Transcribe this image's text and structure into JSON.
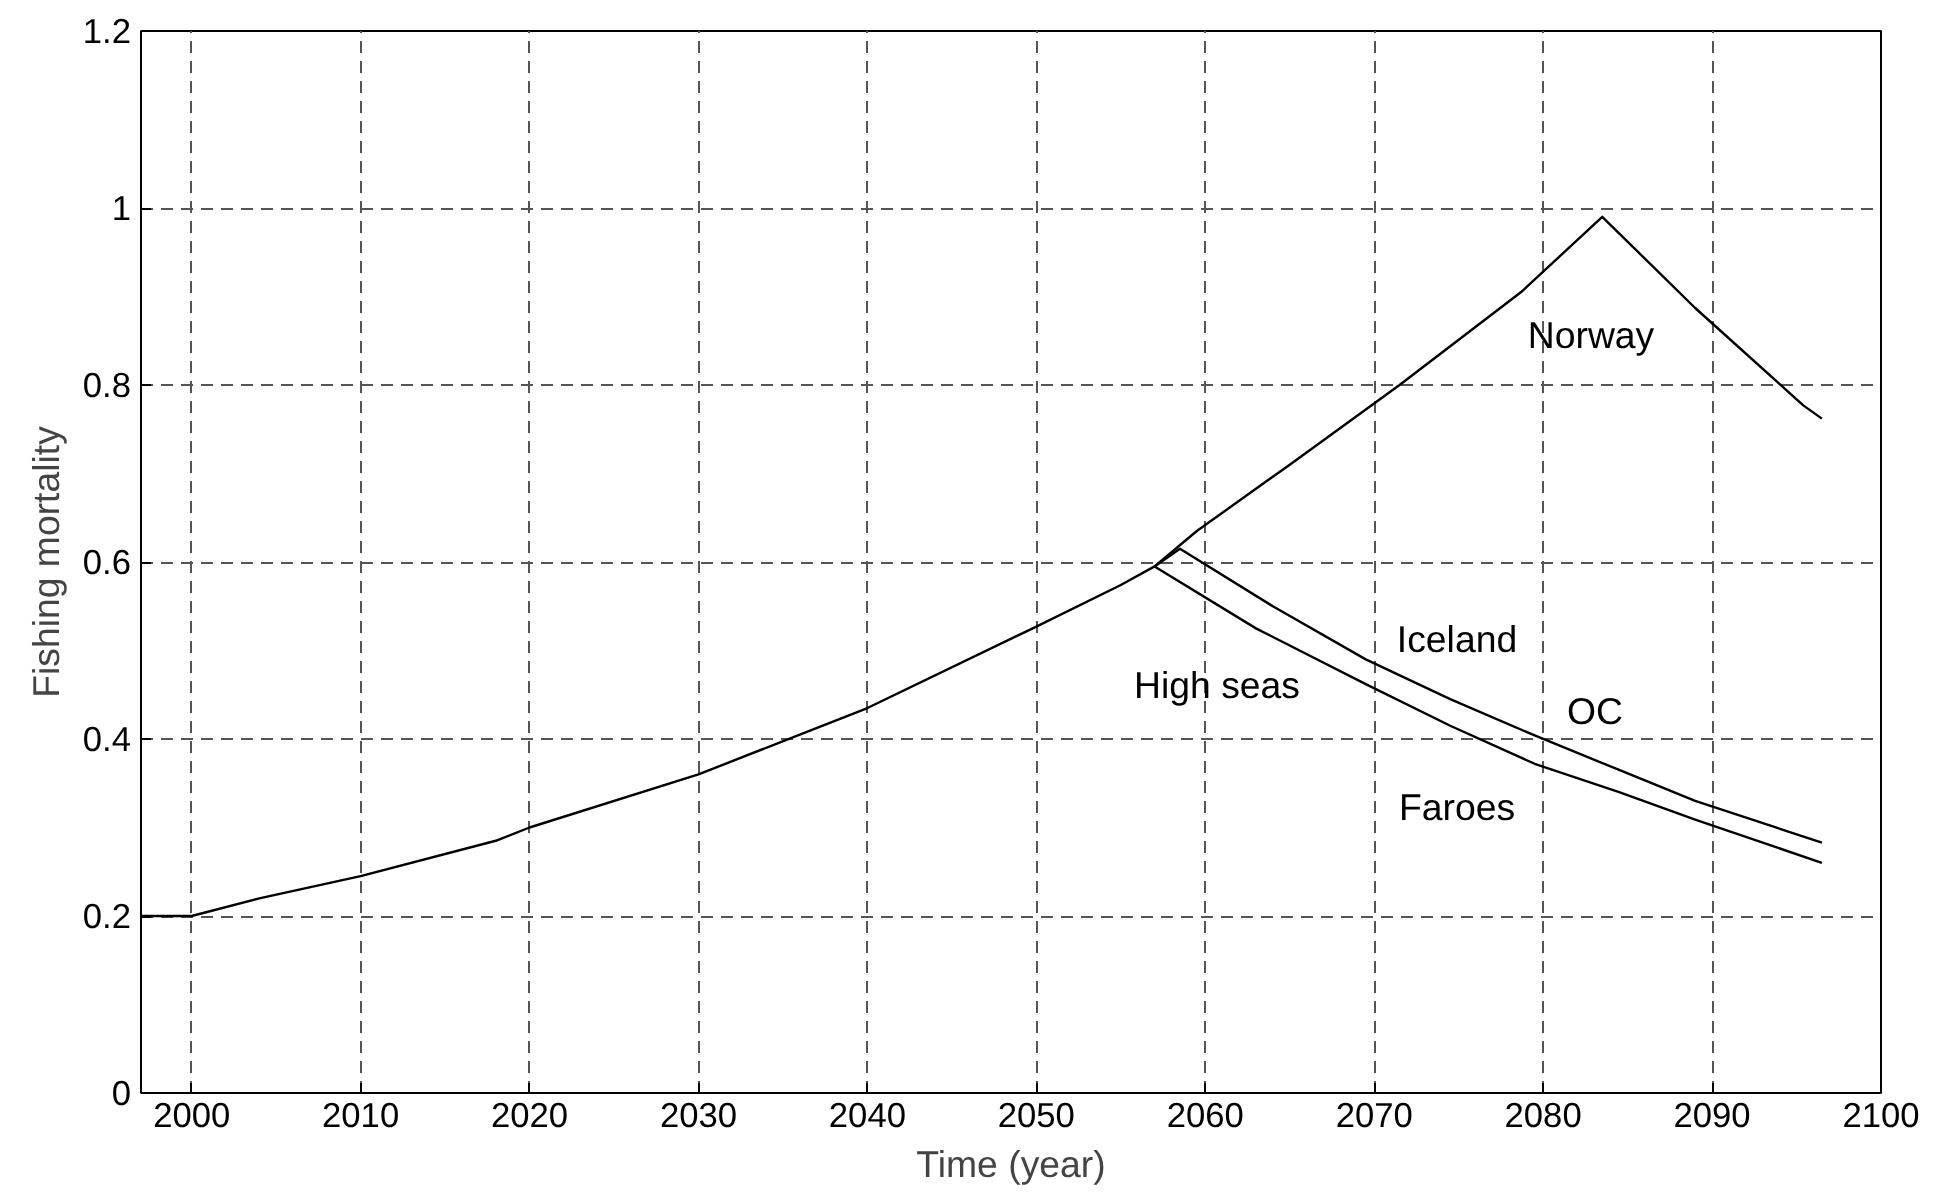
{
  "chart_data": {
    "type": "line",
    "xlabel": "Time (year)",
    "ylabel": "Fishing mortality",
    "xlim": [
      1997,
      2100
    ],
    "xticks": [
      2000,
      2010,
      2020,
      2030,
      2040,
      2050,
      2060,
      2070,
      2080,
      2090,
      2100
    ],
    "ylim": [
      0,
      1.2
    ],
    "yticks": [
      0,
      0.2,
      0.4,
      0.6,
      0.8,
      1,
      1.2
    ],
    "grid": true,
    "line_style": "solid",
    "series": [
      {
        "color": "#000000",
        "x": [
          1997,
          2000,
          2004,
          2010,
          2018,
          2020,
          2030,
          2036,
          2040,
          2050,
          2055,
          2057,
          2059.5,
          2065,
          2071.5,
          2078.7,
          2083.5,
          2089,
          2095.4,
          2096.5
        ],
        "values": [
          0.2,
          0.2,
          0.22,
          0.245,
          0.285,
          0.3,
          0.36,
          0.405,
          0.435,
          0.527,
          0.574,
          0.595,
          0.635,
          0.71,
          0.8,
          0.905,
          0.99,
          0.887,
          0.777,
          0.762
        ]
      },
      {
        "color": "#000000",
        "x": [
          2057,
          2058.5,
          2064,
          2069.5,
          2074.5,
          2079.5,
          2084.5,
          2089,
          2096.5
        ],
        "values": [
          0.595,
          0.615,
          0.55,
          0.49,
          0.445,
          0.404,
          0.365,
          0.33,
          0.283
        ]
      },
      {
        "color": "#000000",
        "x": [
          2057,
          2063,
          2069.5,
          2074.5,
          2079.5,
          2084.5,
          2089,
          2096.5
        ],
        "values": [
          0.595,
          0.525,
          0.462,
          0.415,
          0.372,
          0.34,
          0.309,
          0.26
        ]
      }
    ],
    "annotations": [
      "Norway",
      "Iceland",
      "OC",
      "High seas",
      "Faroes"
    ]
  }
}
